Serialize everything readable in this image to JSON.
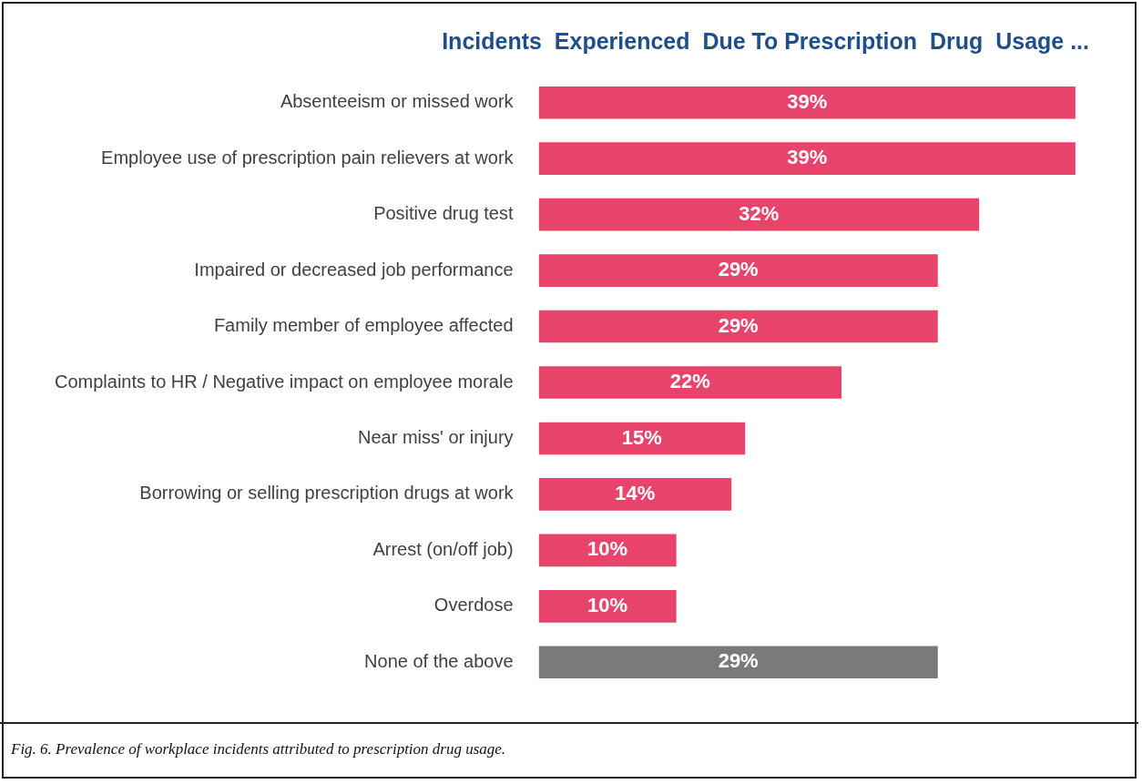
{
  "chart_data": {
    "type": "bar",
    "orientation": "horizontal",
    "title": "Incidents  Experienced  Due To Prescription  Drug  Usage ...",
    "categories": [
      "Absenteeism or missed work",
      "Employee use of prescription pain relievers at work",
      "Positive drug test",
      "Impaired or decreased job performance",
      "Family member of employee affected",
      "Complaints to HR / Negative impact on employee morale",
      "Near miss' or injury",
      "Borrowing or selling prescription drugs at work",
      "Arrest (on/off job)",
      "Overdose",
      "None of the above"
    ],
    "values": [
      39,
      39,
      32,
      29,
      29,
      22,
      15,
      14,
      10,
      10,
      29
    ],
    "value_labels": [
      "39%",
      "39%",
      "32%",
      "29%",
      "29%",
      "22%",
      "15%",
      "14%",
      "10%",
      "10%",
      "29%"
    ],
    "colors": [
      "#e8436b",
      "#e8436b",
      "#e8436b",
      "#e8436b",
      "#e8436b",
      "#e8436b",
      "#e8436b",
      "#e8436b",
      "#e8436b",
      "#e8436b",
      "#7a7a7a"
    ],
    "grid": false,
    "legend": false,
    "annotations": [
      "Fig. 6. Prevalence of  workplace incidents attributed to prescription drug usage."
    ]
  }
}
